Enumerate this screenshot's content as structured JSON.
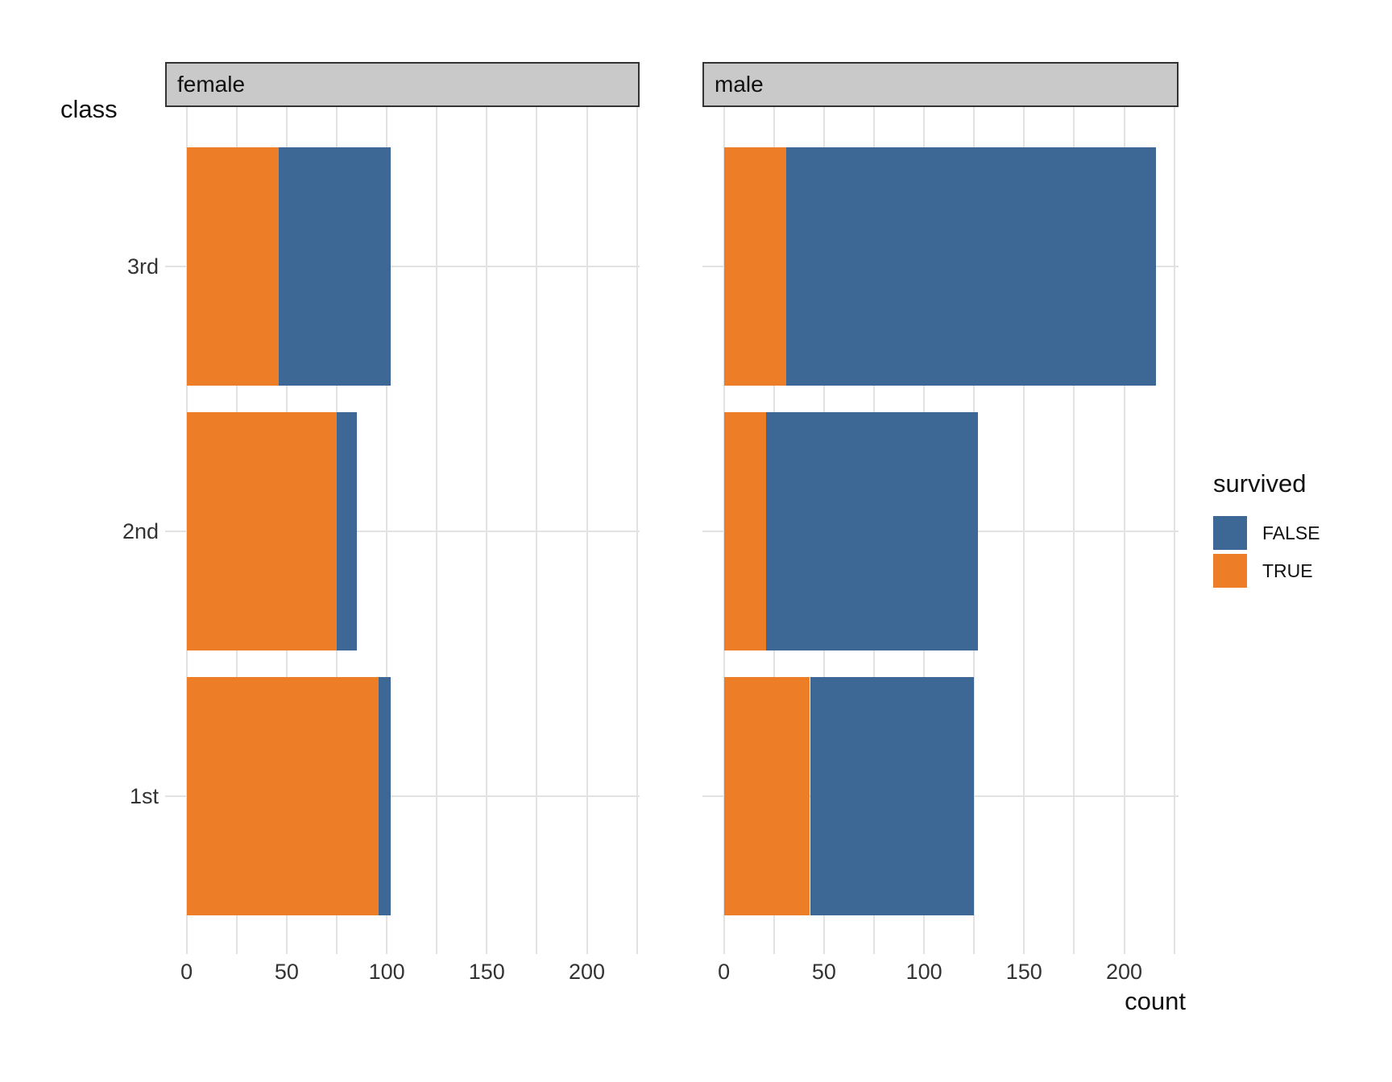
{
  "titles": {
    "y_axis": "class",
    "x_axis": "count"
  },
  "facet_labels": [
    "female",
    "male"
  ],
  "y_categories": [
    "3rd",
    "2nd",
    "1st"
  ],
  "x_ticks": [
    0,
    50,
    100,
    150,
    200
  ],
  "legend": {
    "title": "survived",
    "entries": [
      {
        "label": "FALSE",
        "color": "#3D6795"
      },
      {
        "label": "TRUE",
        "color": "#ED7D26"
      }
    ]
  },
  "colors": {
    "false_fill": "#3D6795",
    "true_fill": "#ED7D26",
    "grid": "#E2E2E2",
    "strip_fill": "#C9C9C9",
    "strip_border": "#333333",
    "tick_text": "#333333",
    "title_text": "#111111",
    "background": "#FFFFFF"
  },
  "chart_data": {
    "type": "bar",
    "orientation": "horizontal",
    "stacked": true,
    "title": "",
    "xlabel": "count",
    "ylabel": "class",
    "legend_title": "survived",
    "legend_position": "right",
    "grid": true,
    "x_axis": {
      "tick_values": [
        0,
        50,
        100,
        150,
        200
      ],
      "minor_step": 25,
      "xlim": [
        0,
        225
      ]
    },
    "categories": [
      "3rd",
      "2nd",
      "1st"
    ],
    "facets": [
      {
        "name": "female",
        "series": [
          {
            "name": "TRUE",
            "values": [
              46,
              75,
              96
            ]
          },
          {
            "name": "FALSE",
            "values": [
              56,
              10,
              6
            ]
          }
        ],
        "totals": [
          102,
          85,
          102
        ]
      },
      {
        "name": "male",
        "series": [
          {
            "name": "TRUE",
            "values": [
              31,
              21,
              43
            ]
          },
          {
            "name": "FALSE",
            "values": [
              185,
              106,
              82
            ]
          }
        ],
        "totals": [
          216,
          127,
          125
        ]
      }
    ]
  }
}
